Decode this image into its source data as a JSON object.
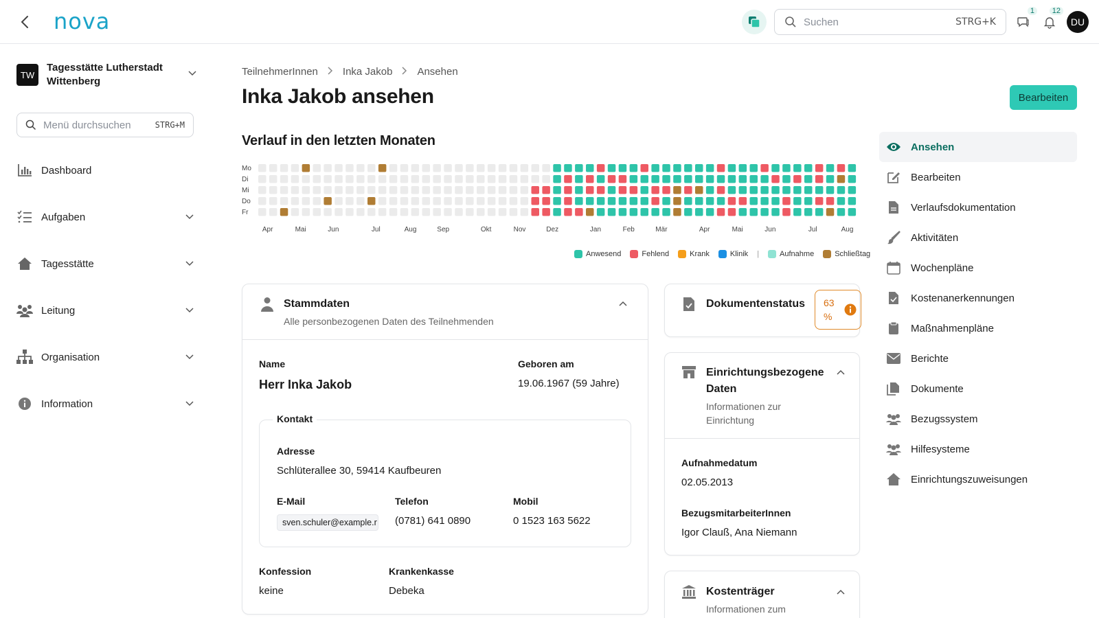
{
  "app": {
    "logo": "nova"
  },
  "topbar": {
    "search_placeholder": "Suchen",
    "search_shortcut": "STRG+K",
    "messages_badge": "1",
    "notifications_badge": "12",
    "avatar_initials": "DU"
  },
  "sidebar": {
    "org_initials": "TW",
    "org_name": "Tagesstätte Lutherstadt Wittenberg",
    "menu_search_placeholder": "Menü durchsuchen",
    "menu_search_shortcut": "STRG+M",
    "items": [
      {
        "label": "Dashboard",
        "icon": "bar-chart-icon"
      },
      {
        "label": "Aufgaben",
        "icon": "task-list-icon"
      },
      {
        "label": "Tagesstätte",
        "icon": "house-icon"
      },
      {
        "label": "Leitung",
        "icon": "people-group-icon"
      },
      {
        "label": "Organisation",
        "icon": "org-chart-icon"
      },
      {
        "label": "Information",
        "icon": "info-icon"
      }
    ]
  },
  "breadcrumb": [
    "TeilnehmerInnen",
    "Inka Jakob",
    "Ansehen"
  ],
  "page_title": "Inka Jakob ansehen",
  "edit_button": "Bearbeiten",
  "history": {
    "title": "Verlauf in den letzten Monaten",
    "days": [
      "Mo",
      "Di",
      "Mi",
      "Do",
      "Fr"
    ],
    "months": [
      "Apr",
      "Mai",
      "Jun",
      "Jul",
      "Aug",
      "Sep",
      "Okt",
      "Nov",
      "Dez",
      "Jan",
      "Feb",
      "Mär",
      "Apr",
      "Mai",
      "Jun",
      "Jul",
      "Aug"
    ],
    "legend": [
      {
        "label": "Anwesend",
        "color": "#2ec4a9"
      },
      {
        "label": "Fehlend",
        "color": "#ee5a63"
      },
      {
        "label": "Krank",
        "color": "#f59e1b"
      },
      {
        "label": "Klinik",
        "color": "#1a8fe3"
      },
      {
        "label": "Aufnahme",
        "color": "#8fe3d3"
      },
      {
        "label": "Schließtag",
        "color": "#b07d34"
      }
    ],
    "empty_color": "#ebebeb"
  },
  "stammdaten": {
    "title": "Stammdaten",
    "subtitle": "Alle personbezogenen Daten des Teilnehmenden",
    "name_label": "Name",
    "name_value": "Herr Inka Jakob",
    "birth_label": "Geboren am",
    "birth_value": "19.06.1967 (59 Jahre)",
    "contact_title": "Kontakt",
    "address_label": "Adresse",
    "address_value": "Schlüterallee 30, 59414 Kaufbeuren",
    "email_label": "E-Mail",
    "email_value": "sven.schuler@example.r",
    "phone_label": "Telefon",
    "phone_value": "(0781) 641 0890",
    "mobile_label": "Mobil",
    "mobile_value": "0 1523 163 5622",
    "confession_label": "Konfession",
    "confession_value": "keine",
    "insurance_label": "Krankenkasse",
    "insurance_value": "Debeka"
  },
  "dokumentenstatus": {
    "title": "Dokumentenstatus",
    "percent": "63 %"
  },
  "einrichtung": {
    "title_line1": "Einrichtungsbezogene",
    "title_line2": "Daten",
    "subtitle_line1": "Informationen zur",
    "subtitle_line2": "Einrichtung",
    "admission_label": "Aufnahmedatum",
    "admission_value": "02.05.2013",
    "staff_label": "BezugsmitarbeiterInnen",
    "staff_value": "Igor Clauß, Ana Niemann"
  },
  "kostentraeger": {
    "title": "Kostenträger",
    "subtitle": "Informationen zum"
  },
  "right_nav": [
    {
      "label": "Ansehen",
      "icon": "eye-icon",
      "active": true
    },
    {
      "label": "Bearbeiten",
      "icon": "edit-icon"
    },
    {
      "label": "Verlaufsdokumentation",
      "icon": "document-icon"
    },
    {
      "label": "Aktivitäten",
      "icon": "brush-icon"
    },
    {
      "label": "Wochenpläne",
      "icon": "calendar-icon"
    },
    {
      "label": "Kostenanerkennungen",
      "icon": "file-check-icon"
    },
    {
      "label": "Maßnahmenpläne",
      "icon": "clipboard-icon"
    },
    {
      "label": "Berichte",
      "icon": "envelope-icon"
    },
    {
      "label": "Dokumente",
      "icon": "documents-icon"
    },
    {
      "label": "Bezugssystem",
      "icon": "users-icon"
    },
    {
      "label": "Hilfesysteme",
      "icon": "users-icon"
    },
    {
      "label": "Einrichtungszuweisungen",
      "icon": "home-icon"
    }
  ]
}
